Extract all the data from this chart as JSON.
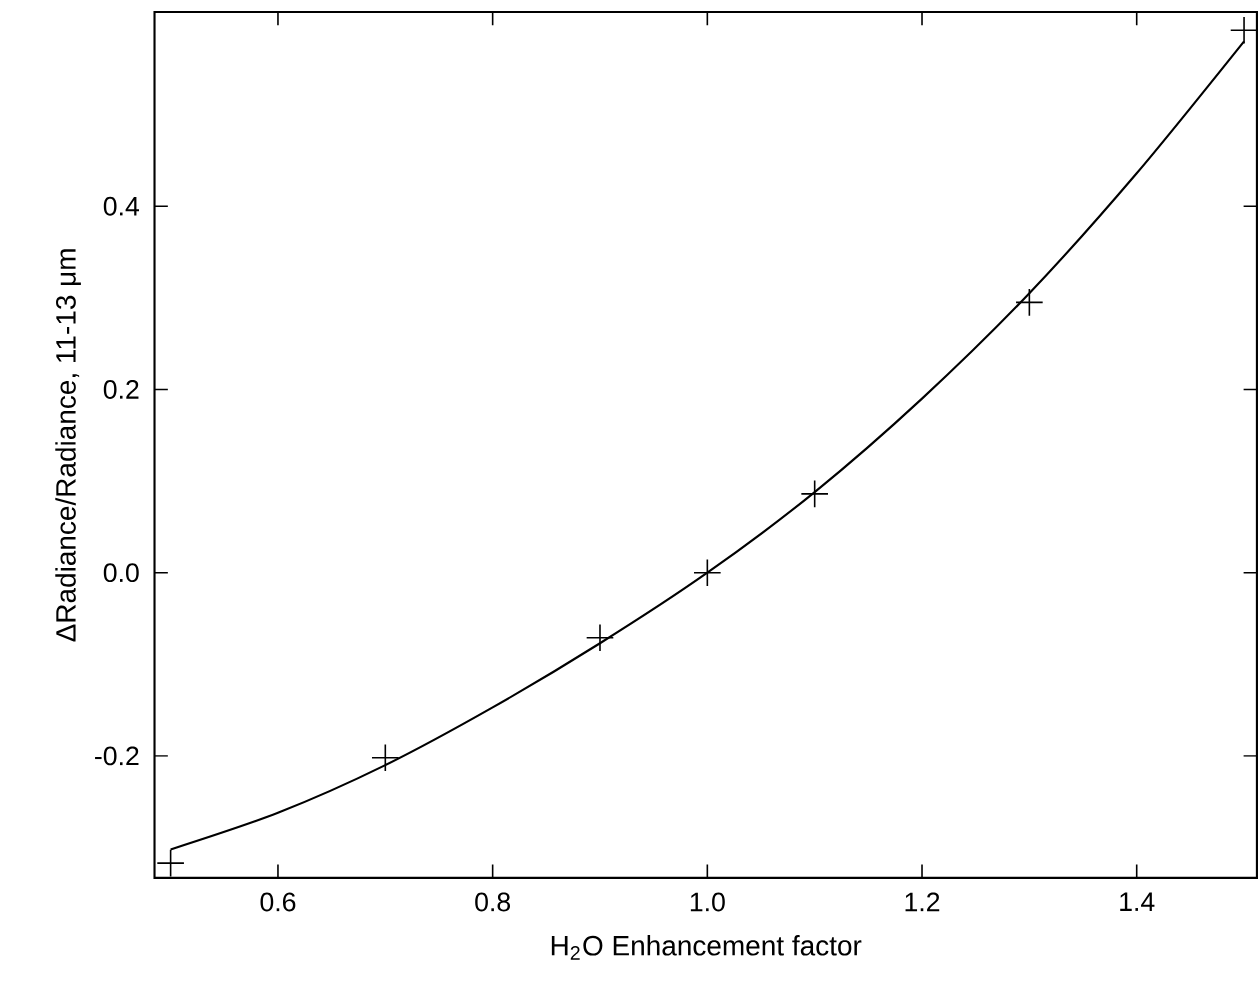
{
  "chart_data": {
    "type": "scatter",
    "xlabel": "H$_{2}$O Enhancement factor",
    "ylabel": "ΔRadiance/Radiance, 11-13 μm",
    "xlim": [
      0.485,
      1.512
    ],
    "ylim": [
      -0.333,
      0.612
    ],
    "xticks": [
      0.6,
      0.8,
      {
        "value": 1.0,
        "label": "1.0"
      },
      1.2,
      1.4
    ],
    "yticks": [
      -0.2,
      {
        "value": 0,
        "label": "0.0"
      },
      0.2,
      0.4
    ],
    "grid": false,
    "series": [
      {
        "color": "#000000",
        "marker": "cross",
        "x": [
          0.5,
          0.7,
          0.9,
          1.0,
          1.1,
          1.3,
          1.5
        ],
        "values": [
          -0.317,
          -0.202,
          -0.071,
          0.0,
          0.086,
          0.295,
          0.592
        ]
      },
      {
        "type": "line",
        "color": "#000000",
        "line_style": "solid",
        "x": [
          0.5,
          0.6,
          0.7,
          0.8,
          0.9,
          1.0,
          1.1,
          1.2,
          1.3,
          1.4,
          1.5
        ],
        "values": [
          -0.302,
          -0.262,
          -0.21,
          -0.147,
          -0.077,
          0.0,
          0.088,
          0.19,
          0.305,
          0.436,
          0.58
        ]
      }
    ]
  }
}
